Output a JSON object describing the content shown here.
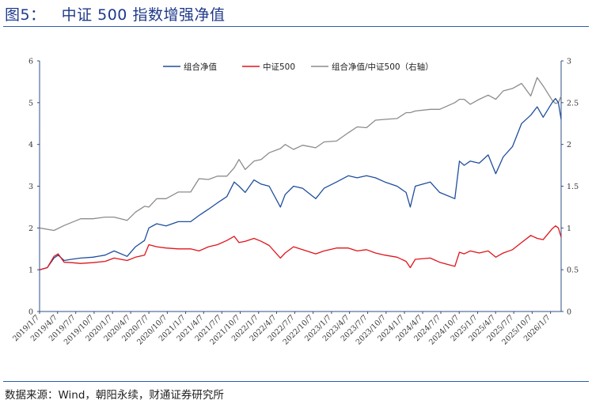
{
  "figure": {
    "label": "图5：",
    "title": "中证 500 指数增强净值",
    "source": "数据来源：Wind，朝阳永续，财通证券研究所"
  },
  "colors": {
    "portfolio": "#1f4e9c",
    "csi500": "#e0141b",
    "portfolio_right": "#8c8c8c",
    "rule": "#2e5aac",
    "axis": "#2e4f86"
  },
  "chart_data": {
    "type": "line",
    "title": "",
    "xlabel": "",
    "ylabel": "",
    "ylim_left": [
      0,
      6
    ],
    "yticks_left": [
      "0",
      "1",
      "2",
      "3",
      "4",
      "5",
      "6"
    ],
    "ylim_right": [
      0,
      3
    ],
    "yticks_right": [
      "0",
      "0.5",
      "1",
      "1.5",
      "2",
      "2.5",
      "3"
    ],
    "x_tick_labels": [
      "2019/1/7",
      "2019/4/7",
      "2019/7/7",
      "2019/10/7",
      "2020/1/7",
      "2020/4/7",
      "2020/7/7",
      "2020/10/7",
      "2021/1/7",
      "2021/4/7",
      "2021/7/7",
      "2021/10/7",
      "2022/1/7",
      "2022/4/7",
      "2022/7/7",
      "2022/10/7",
      "2023/1/7",
      "2023/4/7",
      "2023/7/7",
      "2023/10/7",
      "2024/1/7",
      "2024/4/7",
      "2024/7/7",
      "2024/10/7",
      "2025/1/7",
      "2025/4/7",
      "2025/7/7",
      "2025/10/7",
      "2026/1/7"
    ],
    "x_range": [
      "2019/1/7",
      "2026/3/1"
    ],
    "grid": false,
    "legend_position": "top",
    "series": [
      {
        "name": "组合净值",
        "axis": "left",
        "points": [
          [
            "2019/1/7",
            1.0
          ],
          [
            "2019/2/15",
            1.05
          ],
          [
            "2019/3/20",
            1.28
          ],
          [
            "2019/4/10",
            1.35
          ],
          [
            "2019/5/10",
            1.22
          ],
          [
            "2019/6/15",
            1.25
          ],
          [
            "2019/8/1",
            1.28
          ],
          [
            "2019/10/1",
            1.3
          ],
          [
            "2019/12/1",
            1.35
          ],
          [
            "2020/1/15",
            1.45
          ],
          [
            "2020/3/20",
            1.32
          ],
          [
            "2020/5/1",
            1.55
          ],
          [
            "2020/6/15",
            1.7
          ],
          [
            "2020/7/7",
            2.0
          ],
          [
            "2020/8/15",
            2.1
          ],
          [
            "2020/10/1",
            2.05
          ],
          [
            "2020/12/1",
            2.15
          ],
          [
            "2021/2/1",
            2.15
          ],
          [
            "2021/3/15",
            2.3
          ],
          [
            "2021/5/1",
            2.45
          ],
          [
            "2021/6/15",
            2.6
          ],
          [
            "2021/8/1",
            2.75
          ],
          [
            "2021/9/7",
            3.1
          ],
          [
            "2021/10/1",
            3.0
          ],
          [
            "2021/11/1",
            2.85
          ],
          [
            "2021/12/15",
            3.15
          ],
          [
            "2022/1/20",
            3.05
          ],
          [
            "2022/3/1",
            3.0
          ],
          [
            "2022/4/26",
            2.5
          ],
          [
            "2022/5/20",
            2.8
          ],
          [
            "2022/7/1",
            3.0
          ],
          [
            "2022/8/15",
            2.95
          ],
          [
            "2022/10/20",
            2.7
          ],
          [
            "2022/12/1",
            2.95
          ],
          [
            "2023/2/1",
            3.1
          ],
          [
            "2023/4/1",
            3.25
          ],
          [
            "2023/5/15",
            3.2
          ],
          [
            "2023/7/1",
            3.25
          ],
          [
            "2023/8/15",
            3.2
          ],
          [
            "2023/10/1",
            3.1
          ],
          [
            "2023/12/1",
            3.0
          ],
          [
            "2024/1/15",
            2.85
          ],
          [
            "2024/2/5",
            2.5
          ],
          [
            "2024/3/1",
            3.0
          ],
          [
            "2024/5/15",
            3.1
          ],
          [
            "2024/7/1",
            2.85
          ],
          [
            "2024/9/15",
            2.7
          ],
          [
            "2024/10/8",
            3.6
          ],
          [
            "2024/11/1",
            3.5
          ],
          [
            "2024/12/1",
            3.6
          ],
          [
            "2025/1/15",
            3.55
          ],
          [
            "2025/3/1",
            3.75
          ],
          [
            "2025/4/8",
            3.3
          ],
          [
            "2025/5/15",
            3.7
          ],
          [
            "2025/7/1",
            3.95
          ],
          [
            "2025/8/15",
            4.5
          ],
          [
            "2025/9/30",
            4.7
          ],
          [
            "2025/11/1",
            4.9
          ],
          [
            "2025/12/1",
            4.65
          ],
          [
            "2026/1/15",
            5.0
          ],
          [
            "2026/2/1",
            5.1
          ],
          [
            "2026/2/15",
            5.0
          ],
          [
            "2026/3/1",
            4.6
          ]
        ]
      },
      {
        "name": "中证500",
        "axis": "left",
        "points": [
          [
            "2019/1/7",
            1.0
          ],
          [
            "2019/2/15",
            1.05
          ],
          [
            "2019/3/20",
            1.32
          ],
          [
            "2019/4/10",
            1.38
          ],
          [
            "2019/5/10",
            1.18
          ],
          [
            "2019/6/15",
            1.17
          ],
          [
            "2019/8/1",
            1.15
          ],
          [
            "2019/10/1",
            1.17
          ],
          [
            "2019/12/1",
            1.2
          ],
          [
            "2020/1/15",
            1.28
          ],
          [
            "2020/3/20",
            1.22
          ],
          [
            "2020/5/1",
            1.3
          ],
          [
            "2020/6/15",
            1.35
          ],
          [
            "2020/7/7",
            1.6
          ],
          [
            "2020/8/15",
            1.55
          ],
          [
            "2020/10/1",
            1.52
          ],
          [
            "2020/12/1",
            1.5
          ],
          [
            "2021/2/1",
            1.5
          ],
          [
            "2021/3/15",
            1.45
          ],
          [
            "2021/5/1",
            1.55
          ],
          [
            "2021/6/15",
            1.6
          ],
          [
            "2021/8/1",
            1.7
          ],
          [
            "2021/9/7",
            1.8
          ],
          [
            "2021/10/1",
            1.65
          ],
          [
            "2021/11/1",
            1.68
          ],
          [
            "2021/12/15",
            1.75
          ],
          [
            "2022/1/20",
            1.68
          ],
          [
            "2022/3/1",
            1.58
          ],
          [
            "2022/4/26",
            1.28
          ],
          [
            "2022/5/20",
            1.4
          ],
          [
            "2022/7/1",
            1.55
          ],
          [
            "2022/8/15",
            1.48
          ],
          [
            "2022/10/20",
            1.38
          ],
          [
            "2022/12/1",
            1.45
          ],
          [
            "2023/2/1",
            1.52
          ],
          [
            "2023/4/1",
            1.52
          ],
          [
            "2023/5/15",
            1.45
          ],
          [
            "2023/7/1",
            1.48
          ],
          [
            "2023/8/15",
            1.4
          ],
          [
            "2023/10/1",
            1.35
          ],
          [
            "2023/12/1",
            1.3
          ],
          [
            "2024/1/15",
            1.2
          ],
          [
            "2024/2/5",
            1.05
          ],
          [
            "2024/3/1",
            1.25
          ],
          [
            "2024/5/15",
            1.28
          ],
          [
            "2024/7/1",
            1.18
          ],
          [
            "2024/9/15",
            1.08
          ],
          [
            "2024/10/8",
            1.42
          ],
          [
            "2024/11/1",
            1.38
          ],
          [
            "2024/12/1",
            1.45
          ],
          [
            "2025/1/15",
            1.4
          ],
          [
            "2025/3/1",
            1.45
          ],
          [
            "2025/4/8",
            1.3
          ],
          [
            "2025/5/15",
            1.4
          ],
          [
            "2025/7/1",
            1.48
          ],
          [
            "2025/8/15",
            1.65
          ],
          [
            "2025/9/30",
            1.82
          ],
          [
            "2025/11/1",
            1.75
          ],
          [
            "2025/12/1",
            1.72
          ],
          [
            "2026/1/15",
            1.98
          ],
          [
            "2026/2/1",
            2.05
          ],
          [
            "2026/2/15",
            2.0
          ],
          [
            "2026/3/1",
            1.78
          ]
        ]
      },
      {
        "name": "组合净值/中证500（右轴）",
        "axis": "right",
        "points": [
          [
            "2019/1/7",
            1.0
          ],
          [
            "2019/3/20",
            0.97
          ],
          [
            "2019/5/10",
            1.03
          ],
          [
            "2019/8/1",
            1.11
          ],
          [
            "2019/10/1",
            1.11
          ],
          [
            "2019/12/1",
            1.13
          ],
          [
            "2020/1/15",
            1.13
          ],
          [
            "2020/3/20",
            1.09
          ],
          [
            "2020/5/1",
            1.19
          ],
          [
            "2020/6/15",
            1.26
          ],
          [
            "2020/7/7",
            1.25
          ],
          [
            "2020/8/15",
            1.35
          ],
          [
            "2020/10/1",
            1.35
          ],
          [
            "2020/12/1",
            1.43
          ],
          [
            "2021/2/1",
            1.43
          ],
          [
            "2021/3/15",
            1.59
          ],
          [
            "2021/5/1",
            1.58
          ],
          [
            "2021/6/15",
            1.62
          ],
          [
            "2021/8/1",
            1.62
          ],
          [
            "2021/9/7",
            1.72
          ],
          [
            "2021/10/1",
            1.82
          ],
          [
            "2021/11/1",
            1.7
          ],
          [
            "2021/12/15",
            1.8
          ],
          [
            "2022/1/20",
            1.82
          ],
          [
            "2022/3/1",
            1.9
          ],
          [
            "2022/4/26",
            1.95
          ],
          [
            "2022/5/20",
            2.0
          ],
          [
            "2022/7/1",
            1.94
          ],
          [
            "2022/8/15",
            1.99
          ],
          [
            "2022/10/20",
            1.96
          ],
          [
            "2022/12/1",
            2.03
          ],
          [
            "2023/2/1",
            2.04
          ],
          [
            "2023/4/1",
            2.14
          ],
          [
            "2023/5/15",
            2.21
          ],
          [
            "2023/7/1",
            2.2
          ],
          [
            "2023/8/15",
            2.29
          ],
          [
            "2023/10/1",
            2.3
          ],
          [
            "2023/12/1",
            2.31
          ],
          [
            "2024/1/15",
            2.38
          ],
          [
            "2024/2/5",
            2.38
          ],
          [
            "2024/3/1",
            2.4
          ],
          [
            "2024/5/15",
            2.42
          ],
          [
            "2024/7/1",
            2.42
          ],
          [
            "2024/9/15",
            2.5
          ],
          [
            "2024/10/8",
            2.54
          ],
          [
            "2024/11/1",
            2.54
          ],
          [
            "2024/12/1",
            2.48
          ],
          [
            "2025/1/15",
            2.54
          ],
          [
            "2025/3/1",
            2.59
          ],
          [
            "2025/4/8",
            2.54
          ],
          [
            "2025/5/15",
            2.64
          ],
          [
            "2025/7/1",
            2.67
          ],
          [
            "2025/8/15",
            2.73
          ],
          [
            "2025/9/30",
            2.58
          ],
          [
            "2025/11/1",
            2.8
          ],
          [
            "2025/12/1",
            2.7
          ],
          [
            "2026/1/15",
            2.53
          ],
          [
            "2026/2/1",
            2.49
          ],
          [
            "2026/2/15",
            2.5
          ],
          [
            "2026/3/1",
            2.58
          ]
        ]
      }
    ]
  }
}
